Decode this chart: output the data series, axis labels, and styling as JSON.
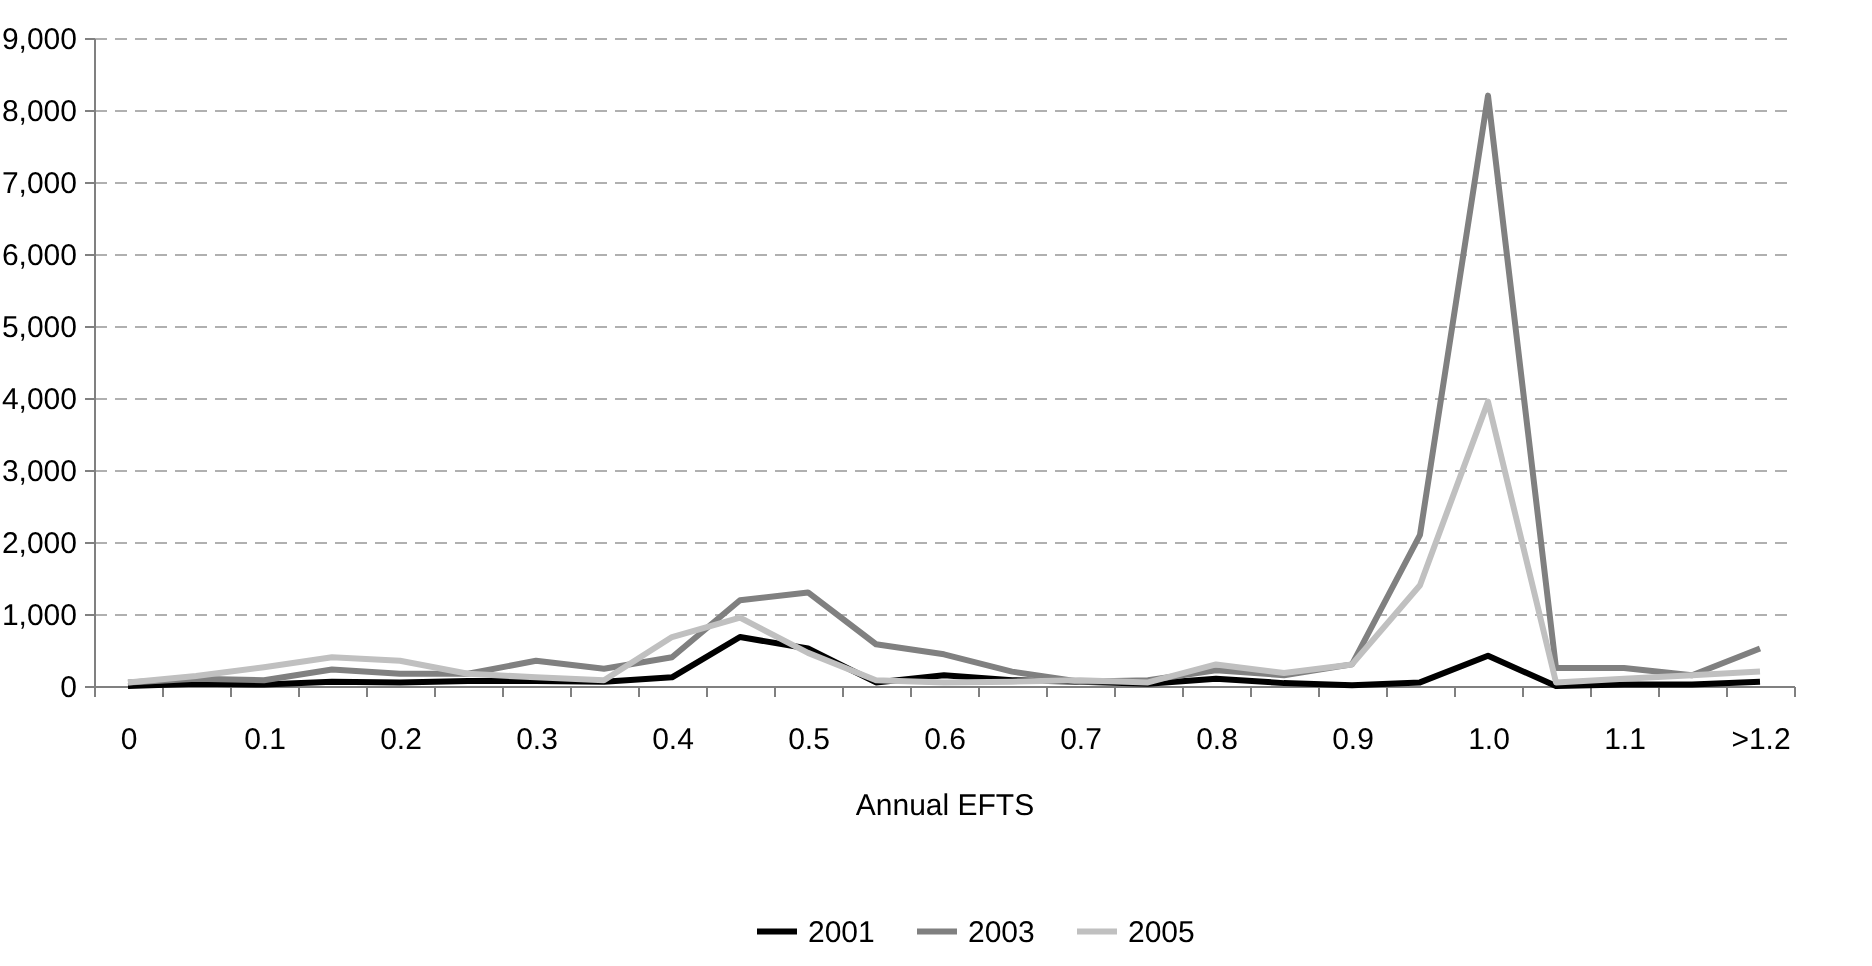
{
  "chart_data": {
    "type": "line",
    "xlabel": "Annual EFTS",
    "categories": [
      "0",
      null,
      "0.1",
      null,
      "0.2",
      null,
      "0.3",
      null,
      "0.4",
      null,
      "0.5",
      null,
      "0.6",
      null,
      "0.7",
      null,
      "0.8",
      null,
      "0.9",
      null,
      "1.0",
      null,
      "1.1",
      null,
      ">1.2"
    ],
    "series": [
      {
        "name": "2001",
        "color": "#000000",
        "values": [
          0,
          30,
          20,
          60,
          50,
          70,
          70,
          60,
          120,
          680,
          520,
          50,
          150,
          80,
          60,
          30,
          100,
          40,
          10,
          50,
          420,
          0,
          20,
          20,
          60
        ]
      },
      {
        "name": "2003",
        "color": "#808080",
        "values": [
          50,
          100,
          80,
          230,
          170,
          170,
          350,
          240,
          400,
          1190,
          1300,
          580,
          440,
          200,
          60,
          80,
          220,
          150,
          300,
          2100,
          8200,
          250,
          250,
          150,
          520
        ]
      },
      {
        "name": "2005",
        "color": "#c0c0c0",
        "values": [
          50,
          140,
          260,
          400,
          350,
          170,
          120,
          80,
          680,
          950,
          460,
          80,
          50,
          60,
          80,
          50,
          300,
          180,
          300,
          1400,
          3950,
          50,
          100,
          150,
          200
        ]
      }
    ],
    "ylim": [
      0,
      9000
    ],
    "yticks": [
      0,
      {
        "value": 1000,
        "label": "1,000"
      },
      {
        "value": 2000,
        "label": "2,000"
      },
      {
        "value": 3000,
        "label": "3,000"
      },
      {
        "value": 4000,
        "label": "4,000"
      },
      {
        "value": 5000,
        "label": "5,000"
      },
      {
        "value": 6000,
        "label": "6,000"
      },
      {
        "value": 7000,
        "label": "7,000"
      },
      {
        "value": 8000,
        "label": "8,000"
      },
      {
        "value": 9000,
        "label": "9,000"
      }
    ],
    "grid": "y",
    "legend": "bottom",
    "marker": "none",
    "line_style": "solid"
  }
}
